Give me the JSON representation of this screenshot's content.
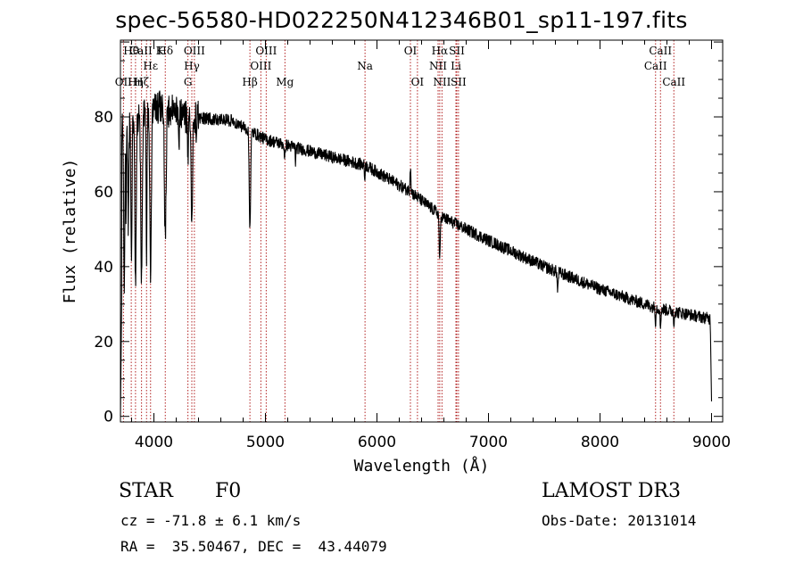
{
  "title": "spec-56580-HD022250N412346B01_sp11-197.fits",
  "chart_data": {
    "type": "line",
    "xlabel": "Wavelength (Å)",
    "ylabel": "Flux (relative)",
    "xlim": [
      3700,
      9100
    ],
    "ylim": [
      -1.5,
      100.5
    ],
    "x_ticks": [
      4000,
      5000,
      6000,
      7000,
      8000,
      9000
    ],
    "y_ticks": [
      0,
      20,
      40,
      60,
      80
    ],
    "grid": false,
    "continuum": [
      [
        3700,
        77
      ],
      [
        3850,
        80
      ],
      [
        4000,
        83
      ],
      [
        4300,
        80
      ],
      [
        4700,
        79
      ],
      [
        5000,
        74
      ],
      [
        5500,
        70
      ],
      [
        5900,
        67
      ],
      [
        6300,
        60
      ],
      [
        6600,
        53
      ],
      [
        7000,
        47
      ],
      [
        7500,
        40
      ],
      [
        8000,
        34
      ],
      [
        8500,
        29
      ],
      [
        9000,
        26
      ]
    ],
    "absorption_lines": [
      {
        "wavelength": 3734,
        "depth": 45,
        "width": 7
      },
      {
        "wavelength": 3750,
        "depth": 25,
        "width": 5
      },
      {
        "wavelength": 3770,
        "depth": 30,
        "width": 6
      },
      {
        "wavelength": 3798,
        "depth": 38,
        "width": 7
      },
      {
        "wavelength": 3835,
        "depth": 45,
        "width": 8
      },
      {
        "wavelength": 3889,
        "depth": 45,
        "width": 9
      },
      {
        "wavelength": 3934,
        "depth": 38,
        "width": 6
      },
      {
        "wavelength": 3970,
        "depth": 45,
        "width": 10
      },
      {
        "wavelength": 4102,
        "depth": 35,
        "width": 10
      },
      {
        "wavelength": 4226,
        "depth": 8,
        "width": 4
      },
      {
        "wavelength": 4305,
        "depth": 12,
        "width": 5
      },
      {
        "wavelength": 4340,
        "depth": 30,
        "width": 9
      },
      {
        "wavelength": 4383,
        "depth": 6,
        "width": 4
      },
      {
        "wavelength": 4861,
        "depth": 25,
        "width": 9
      },
      {
        "wavelength": 5172,
        "depth": 5,
        "width": 5
      },
      {
        "wavelength": 5270,
        "depth": 4,
        "width": 4
      },
      {
        "wavelength": 5890,
        "depth": 4,
        "width": 4
      },
      {
        "wavelength": 6563,
        "depth": 12,
        "width": 7
      },
      {
        "wavelength": 8498,
        "depth": 4,
        "width": 4
      },
      {
        "wavelength": 8542,
        "depth": 5,
        "width": 5
      },
      {
        "wavelength": 8662,
        "depth": 4,
        "width": 4
      }
    ],
    "features": [
      {
        "wavelength": 6300,
        "flux": 7
      },
      {
        "wavelength": 7620,
        "flux": 5
      }
    ],
    "edges": [
      {
        "wavelength": 3700,
        "flux": 0
      },
      {
        "wavelength": 3710,
        "flux": 30
      },
      {
        "wavelength": 8990,
        "flux": 22
      },
      {
        "wavelength": 9000,
        "flux": 4
      }
    ],
    "noise_amplitude": 1.6,
    "line_markers": [
      {
        "label": "OII",
        "wavelength": 3727,
        "row": 3
      },
      {
        "label": "Hθ",
        "wavelength": 3797,
        "row": 1
      },
      {
        "label": "Hη",
        "wavelength": 3835,
        "row": 3
      },
      {
        "label": "Hζ",
        "wavelength": 3889,
        "row": 3
      },
      {
        "label": "CaII K",
        "wavelength": 3934,
        "row": 1
      },
      {
        "label": "Hε",
        "wavelength": 3970,
        "row": 2
      },
      {
        "label": "Hδ",
        "wavelength": 4102,
        "row": 1
      },
      {
        "label": "G",
        "wavelength": 4305,
        "row": 3
      },
      {
        "label": "Hγ",
        "wavelength": 4340,
        "row": 2
      },
      {
        "label": "OIII",
        "wavelength": 4363,
        "row": 1
      },
      {
        "label": "Hβ",
        "wavelength": 4861,
        "row": 3
      },
      {
        "label": "OIII",
        "wavelength": 4959,
        "row": 2
      },
      {
        "label": "OIII",
        "wavelength": 5007,
        "row": 1
      },
      {
        "label": "Mg",
        "wavelength": 5175,
        "row": 3
      },
      {
        "label": "Na",
        "wavelength": 5893,
        "row": 2
      },
      {
        "label": "OI",
        "wavelength": 6300,
        "row": 1
      },
      {
        "label": "OI",
        "wavelength": 6363,
        "row": 3
      },
      {
        "label": "NII",
        "wavelength": 6548,
        "row": 2
      },
      {
        "label": "Hα",
        "wavelength": 6563,
        "row": 1
      },
      {
        "label": "NII",
        "wavelength": 6583,
        "row": 3
      },
      {
        "label": "Li",
        "wavelength": 6708,
        "row": 2
      },
      {
        "label": "SII",
        "wavelength": 6716,
        "row": 1
      },
      {
        "label": "SII",
        "wavelength": 6731,
        "row": 3
      },
      {
        "label": "CaII",
        "wavelength": 8498,
        "row": 2
      },
      {
        "label": "CaII",
        "wavelength": 8542,
        "row": 1
      },
      {
        "label": "CaII",
        "wavelength": 8662,
        "row": 3
      }
    ]
  },
  "info": {
    "class": "STAR",
    "subclass": "F0",
    "survey": "LAMOST DR3",
    "cz": "cz = -71.8 ± 6.1 km/s",
    "obs_date": "Obs-Date: 20131014",
    "coords": "RA =  35.50467, DEC =  43.44079"
  },
  "colors": {
    "marker": "#b22222",
    "axis": "#000000",
    "spectrum": "#000000"
  }
}
